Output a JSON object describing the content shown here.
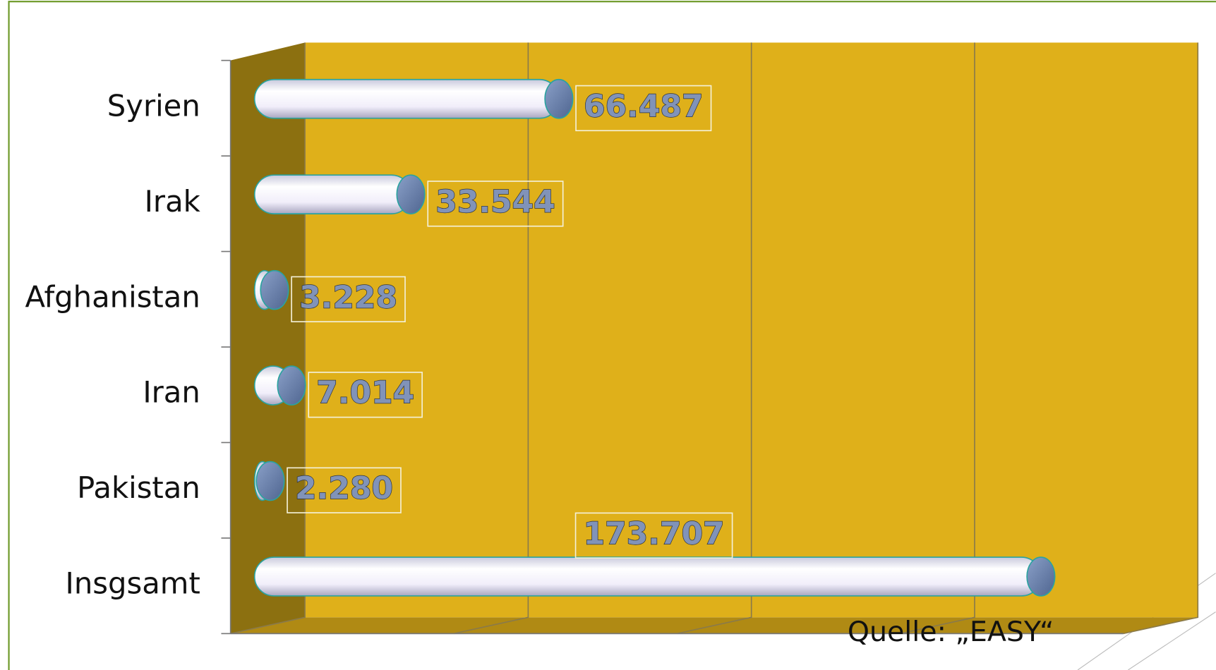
{
  "chart_data": {
    "type": "bar",
    "orientation": "horizontal",
    "categories": [
      "Syrien",
      "Irak",
      "Afghanistan",
      "Iran",
      "Pakistan",
      "Insgsamt"
    ],
    "values": [
      66487,
      33544,
      3228,
      7014,
      2280,
      173707
    ],
    "value_labels": [
      "66.487",
      "33.544",
      "3.228",
      "7.014",
      "2.280",
      "173.707"
    ],
    "xlim": [
      0,
      200000
    ],
    "xticks": [
      0,
      50000,
      100000,
      150000,
      200000
    ],
    "grid": true,
    "wall_color": "#dfb01a",
    "side_color": "#8c7010",
    "floor_color": "#b08a14",
    "annotation": "Quelle: „EASY“"
  }
}
